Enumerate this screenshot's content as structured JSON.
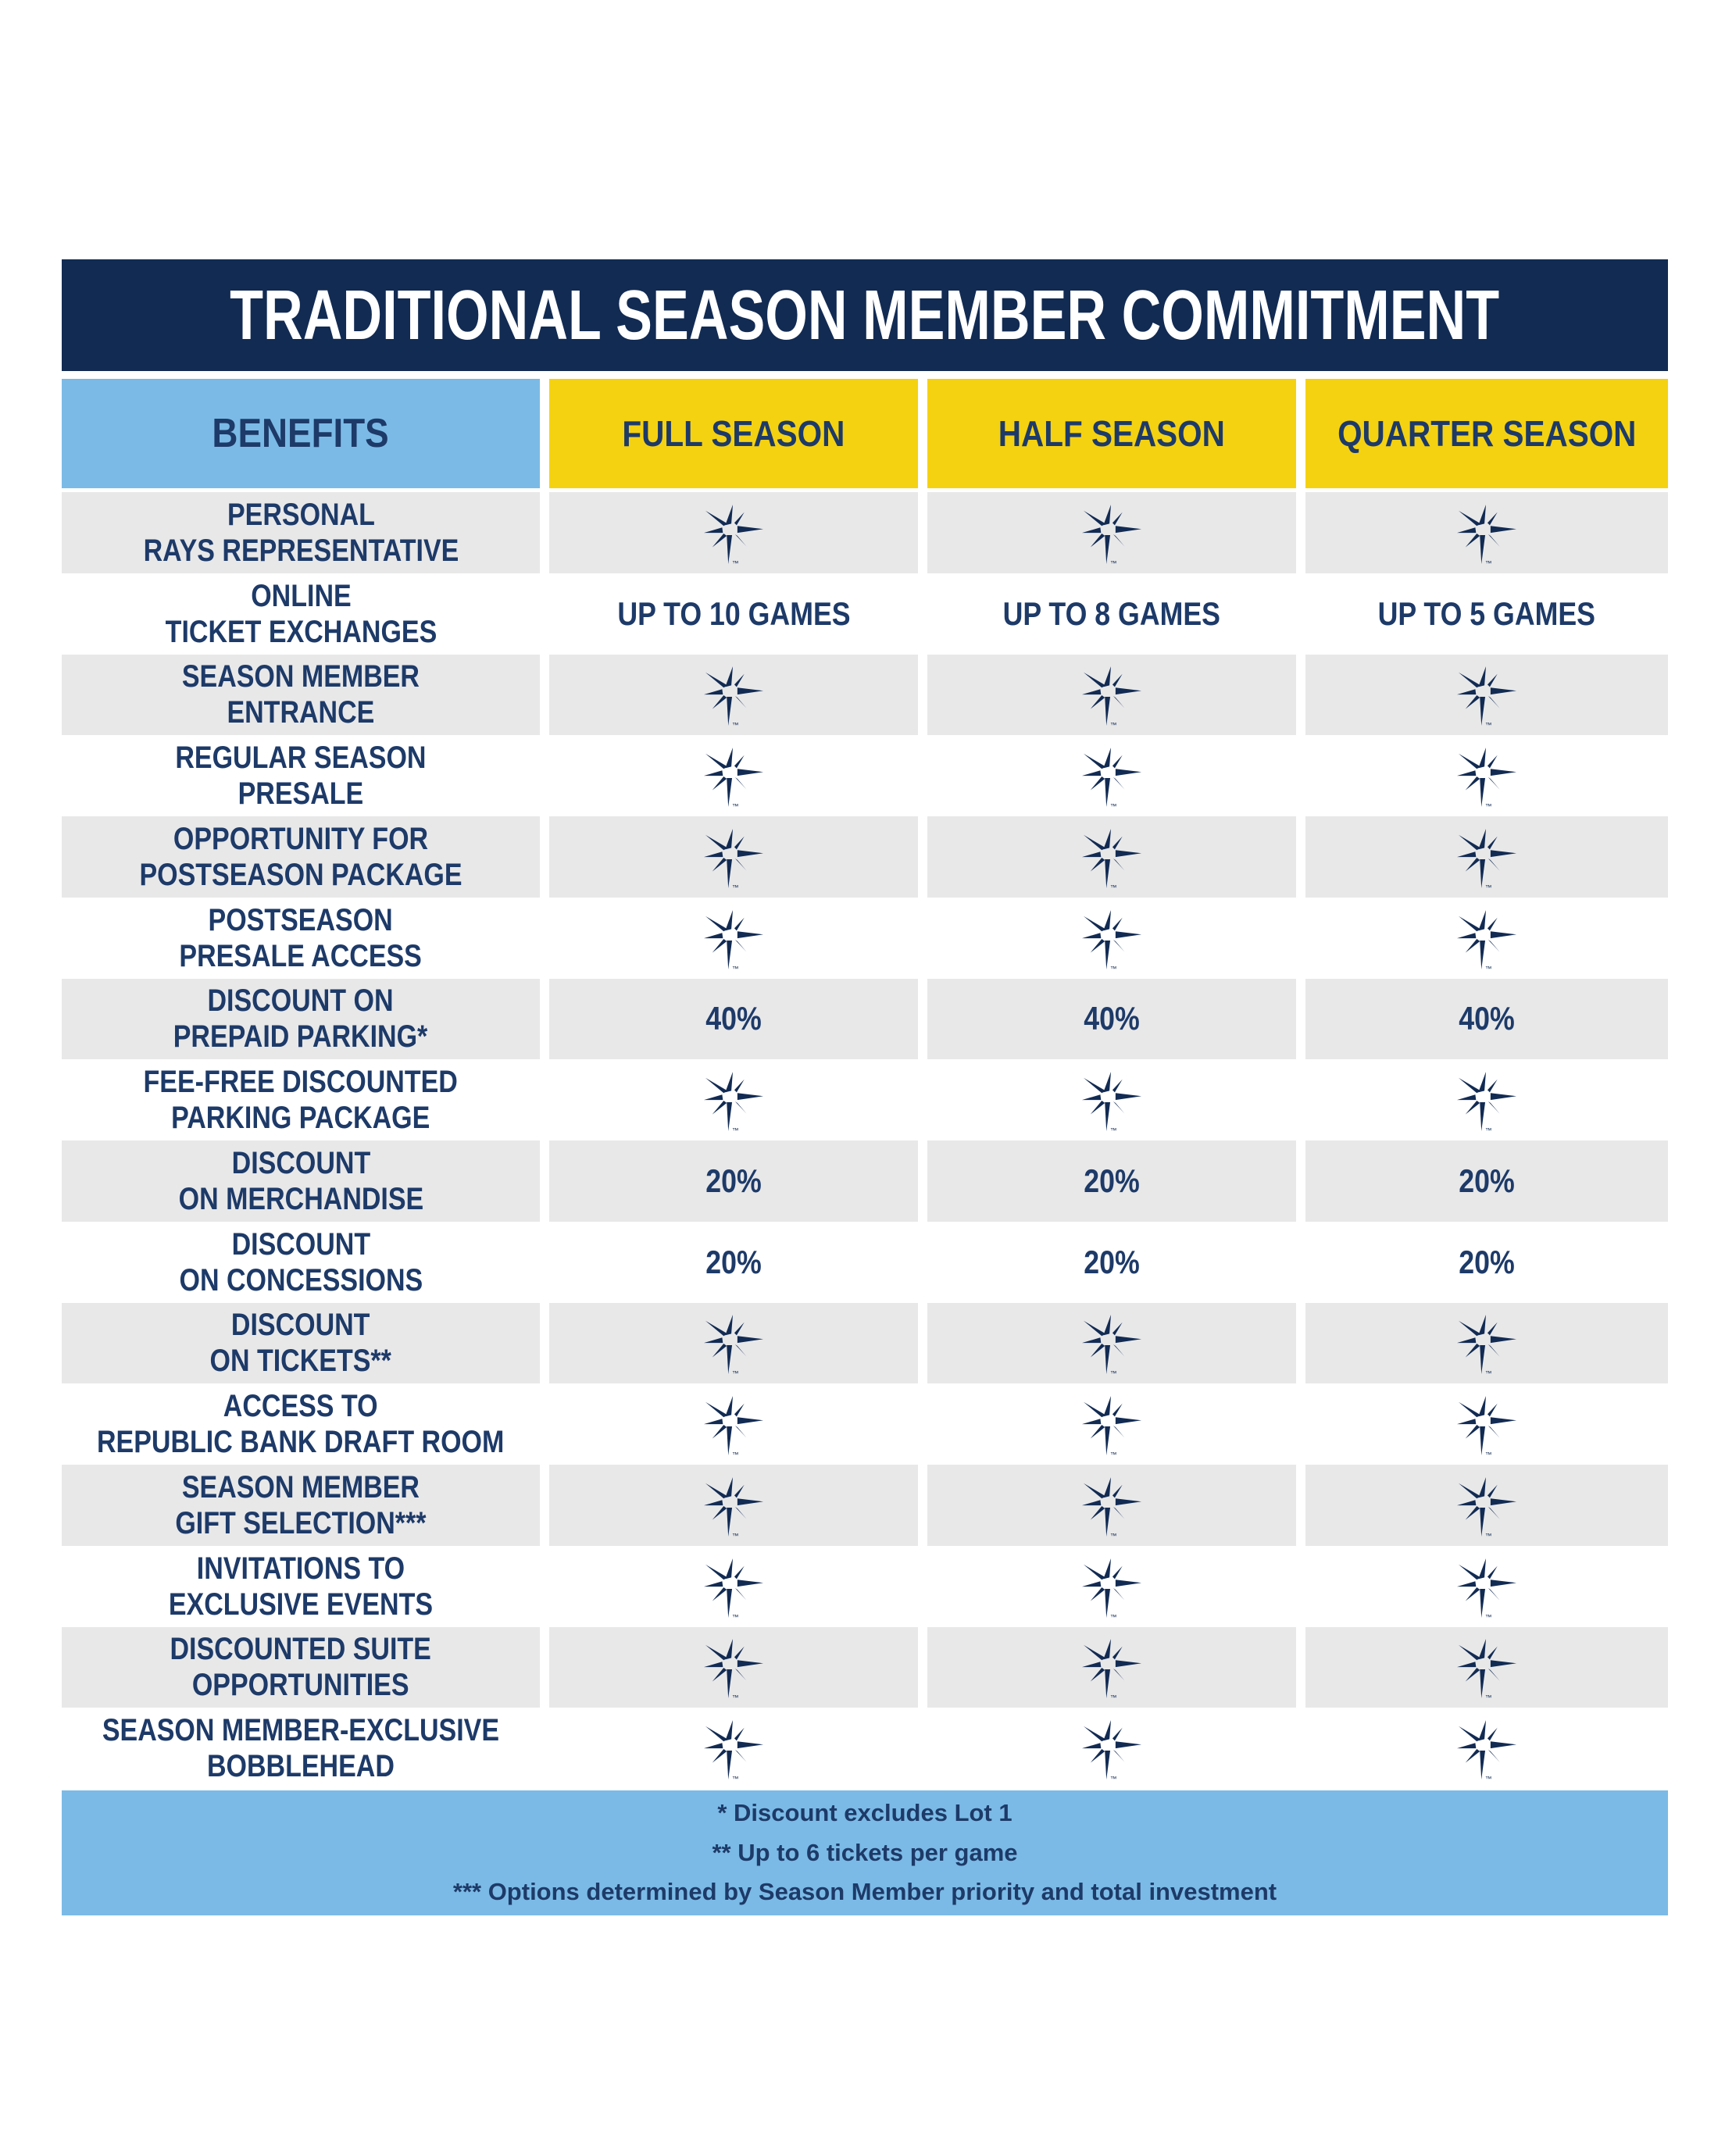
{
  "title": "TRADITIONAL SEASON MEMBER COMMITMENT",
  "columns": [
    {
      "key": "benefits",
      "label": "BENEFITS"
    },
    {
      "key": "full_season",
      "label": "FULL SEASON"
    },
    {
      "key": "half_season",
      "label": "HALF SEASON"
    },
    {
      "key": "quarter_season",
      "label": "QUARTER SEASON"
    }
  ],
  "rows": [
    {
      "label": [
        "PERSONAL",
        "RAYS REPRESENTATIVE"
      ],
      "values": [
        "sunburst",
        "sunburst",
        "sunburst"
      ]
    },
    {
      "label": [
        "ONLINE",
        "TICKET EXCHANGES"
      ],
      "values": [
        "UP TO 10 GAMES",
        "UP TO 8 GAMES",
        "UP TO 5 GAMES"
      ]
    },
    {
      "label": [
        "SEASON MEMBER",
        "ENTRANCE"
      ],
      "values": [
        "sunburst",
        "sunburst",
        "sunburst"
      ]
    },
    {
      "label": [
        "REGULAR SEASON",
        "PRESALE"
      ],
      "values": [
        "sunburst",
        "sunburst",
        "sunburst"
      ]
    },
    {
      "label": [
        "OPPORTUNITY FOR",
        "POSTSEASON PACKAGE"
      ],
      "values": [
        "sunburst",
        "sunburst",
        "sunburst"
      ]
    },
    {
      "label": [
        "POSTSEASON",
        "PRESALE ACCESS"
      ],
      "values": [
        "sunburst",
        "sunburst",
        "sunburst"
      ]
    },
    {
      "label": [
        "DISCOUNT ON",
        "PREPAID PARKING*"
      ],
      "values": [
        "40%",
        "40%",
        "40%"
      ]
    },
    {
      "label": [
        "FEE-FREE DISCOUNTED",
        "PARKING PACKAGE"
      ],
      "values": [
        "sunburst",
        "sunburst",
        "sunburst"
      ]
    },
    {
      "label": [
        "DISCOUNT",
        "ON MERCHANDISE"
      ],
      "values": [
        "20%",
        "20%",
        "20%"
      ]
    },
    {
      "label": [
        "DISCOUNT",
        "ON CONCESSIONS"
      ],
      "values": [
        "20%",
        "20%",
        "20%"
      ]
    },
    {
      "label": [
        "DISCOUNT",
        "ON TICKETS**"
      ],
      "values": [
        "sunburst",
        "sunburst",
        "sunburst"
      ]
    },
    {
      "label": [
        "ACCESS TO",
        "REPUBLIC BANK DRAFT ROOM"
      ],
      "values": [
        "sunburst",
        "sunburst",
        "sunburst"
      ]
    },
    {
      "label": [
        "SEASON MEMBER",
        "GIFT SELECTION***"
      ],
      "values": [
        "sunburst",
        "sunburst",
        "sunburst"
      ]
    },
    {
      "label": [
        "INVITATIONS TO",
        "EXCLUSIVE EVENTS"
      ],
      "values": [
        "sunburst",
        "sunburst",
        "sunburst"
      ]
    },
    {
      "label": [
        "DISCOUNTED SUITE",
        "OPPORTUNITIES"
      ],
      "values": [
        "sunburst",
        "sunburst",
        "sunburst"
      ]
    },
    {
      "label": [
        "SEASON MEMBER-EXCLUSIVE",
        "BOBBLEHEAD"
      ],
      "values": [
        "sunburst",
        "sunburst",
        "sunburst"
      ]
    }
  ],
  "footnotes": [
    "* Discount excludes Lot 1",
    "** Up to 6 tickets per game",
    "*** Options determined by Season Member priority and total investment"
  ],
  "icons": {
    "sunburst": "rays-sunburst-icon",
    "trademark": "™"
  },
  "colors": {
    "navy": "#122b53",
    "text_navy": "#1d3a68",
    "columbia_blue": "#7bbae6",
    "yellow": "#f5d211",
    "row_gray": "#e8e8e9",
    "white": "#ffffff"
  }
}
